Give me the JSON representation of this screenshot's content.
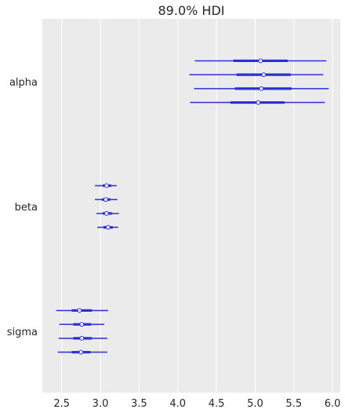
{
  "chart_data": {
    "type": "forest",
    "title": "89.0% HDI",
    "xlabel": "",
    "ylabel": "",
    "xlim": [
      2.25,
      6.1
    ],
    "x_ticks": [
      "2.5",
      "3.0",
      "3.5",
      "4.0",
      "4.5",
      "5.0",
      "5.5",
      "6.0"
    ],
    "x_tick_values": [
      2.5,
      3.0,
      3.5,
      4.0,
      4.5,
      5.0,
      5.5,
      6.0
    ],
    "grid": true,
    "colors": {
      "line": "#2a2fd6",
      "background": "#ebebeb",
      "grid": "#ffffff",
      "point_fill": "#ffffff"
    },
    "variables": [
      {
        "name": "alpha",
        "chains": [
          {
            "hdi_low": 4.22,
            "iqr_low": 4.72,
            "median": 5.07,
            "iqr_high": 5.42,
            "hdi_high": 5.92
          },
          {
            "hdi_low": 4.15,
            "iqr_low": 4.76,
            "median": 5.11,
            "iqr_high": 5.46,
            "hdi_high": 5.88
          },
          {
            "hdi_low": 4.21,
            "iqr_low": 4.74,
            "median": 5.08,
            "iqr_high": 5.47,
            "hdi_high": 5.95
          },
          {
            "hdi_low": 4.16,
            "iqr_low": 4.68,
            "median": 5.04,
            "iqr_high": 5.38,
            "hdi_high": 5.9
          }
        ]
      },
      {
        "name": "beta",
        "chains": [
          {
            "hdi_low": 2.93,
            "iqr_low": 3.03,
            "median": 3.08,
            "iqr_high": 3.14,
            "hdi_high": 3.21
          },
          {
            "hdi_low": 2.93,
            "iqr_low": 3.02,
            "median": 3.07,
            "iqr_high": 3.13,
            "hdi_high": 3.22
          },
          {
            "hdi_low": 2.95,
            "iqr_low": 3.03,
            "median": 3.08,
            "iqr_high": 3.15,
            "hdi_high": 3.24
          },
          {
            "hdi_low": 2.96,
            "iqr_low": 3.04,
            "median": 3.1,
            "iqr_high": 3.16,
            "hdi_high": 3.23
          }
        ]
      },
      {
        "name": "sigma",
        "chains": [
          {
            "hdi_low": 2.43,
            "iqr_low": 2.63,
            "median": 2.73,
            "iqr_high": 2.89,
            "hdi_high": 3.1
          },
          {
            "hdi_low": 2.47,
            "iqr_low": 2.65,
            "median": 2.76,
            "iqr_high": 2.88,
            "hdi_high": 3.05
          },
          {
            "hdi_low": 2.46,
            "iqr_low": 2.65,
            "median": 2.76,
            "iqr_high": 2.89,
            "hdi_high": 3.09
          },
          {
            "hdi_low": 2.45,
            "iqr_low": 2.63,
            "median": 2.75,
            "iqr_high": 2.87,
            "hdi_high": 3.09
          }
        ]
      }
    ]
  }
}
